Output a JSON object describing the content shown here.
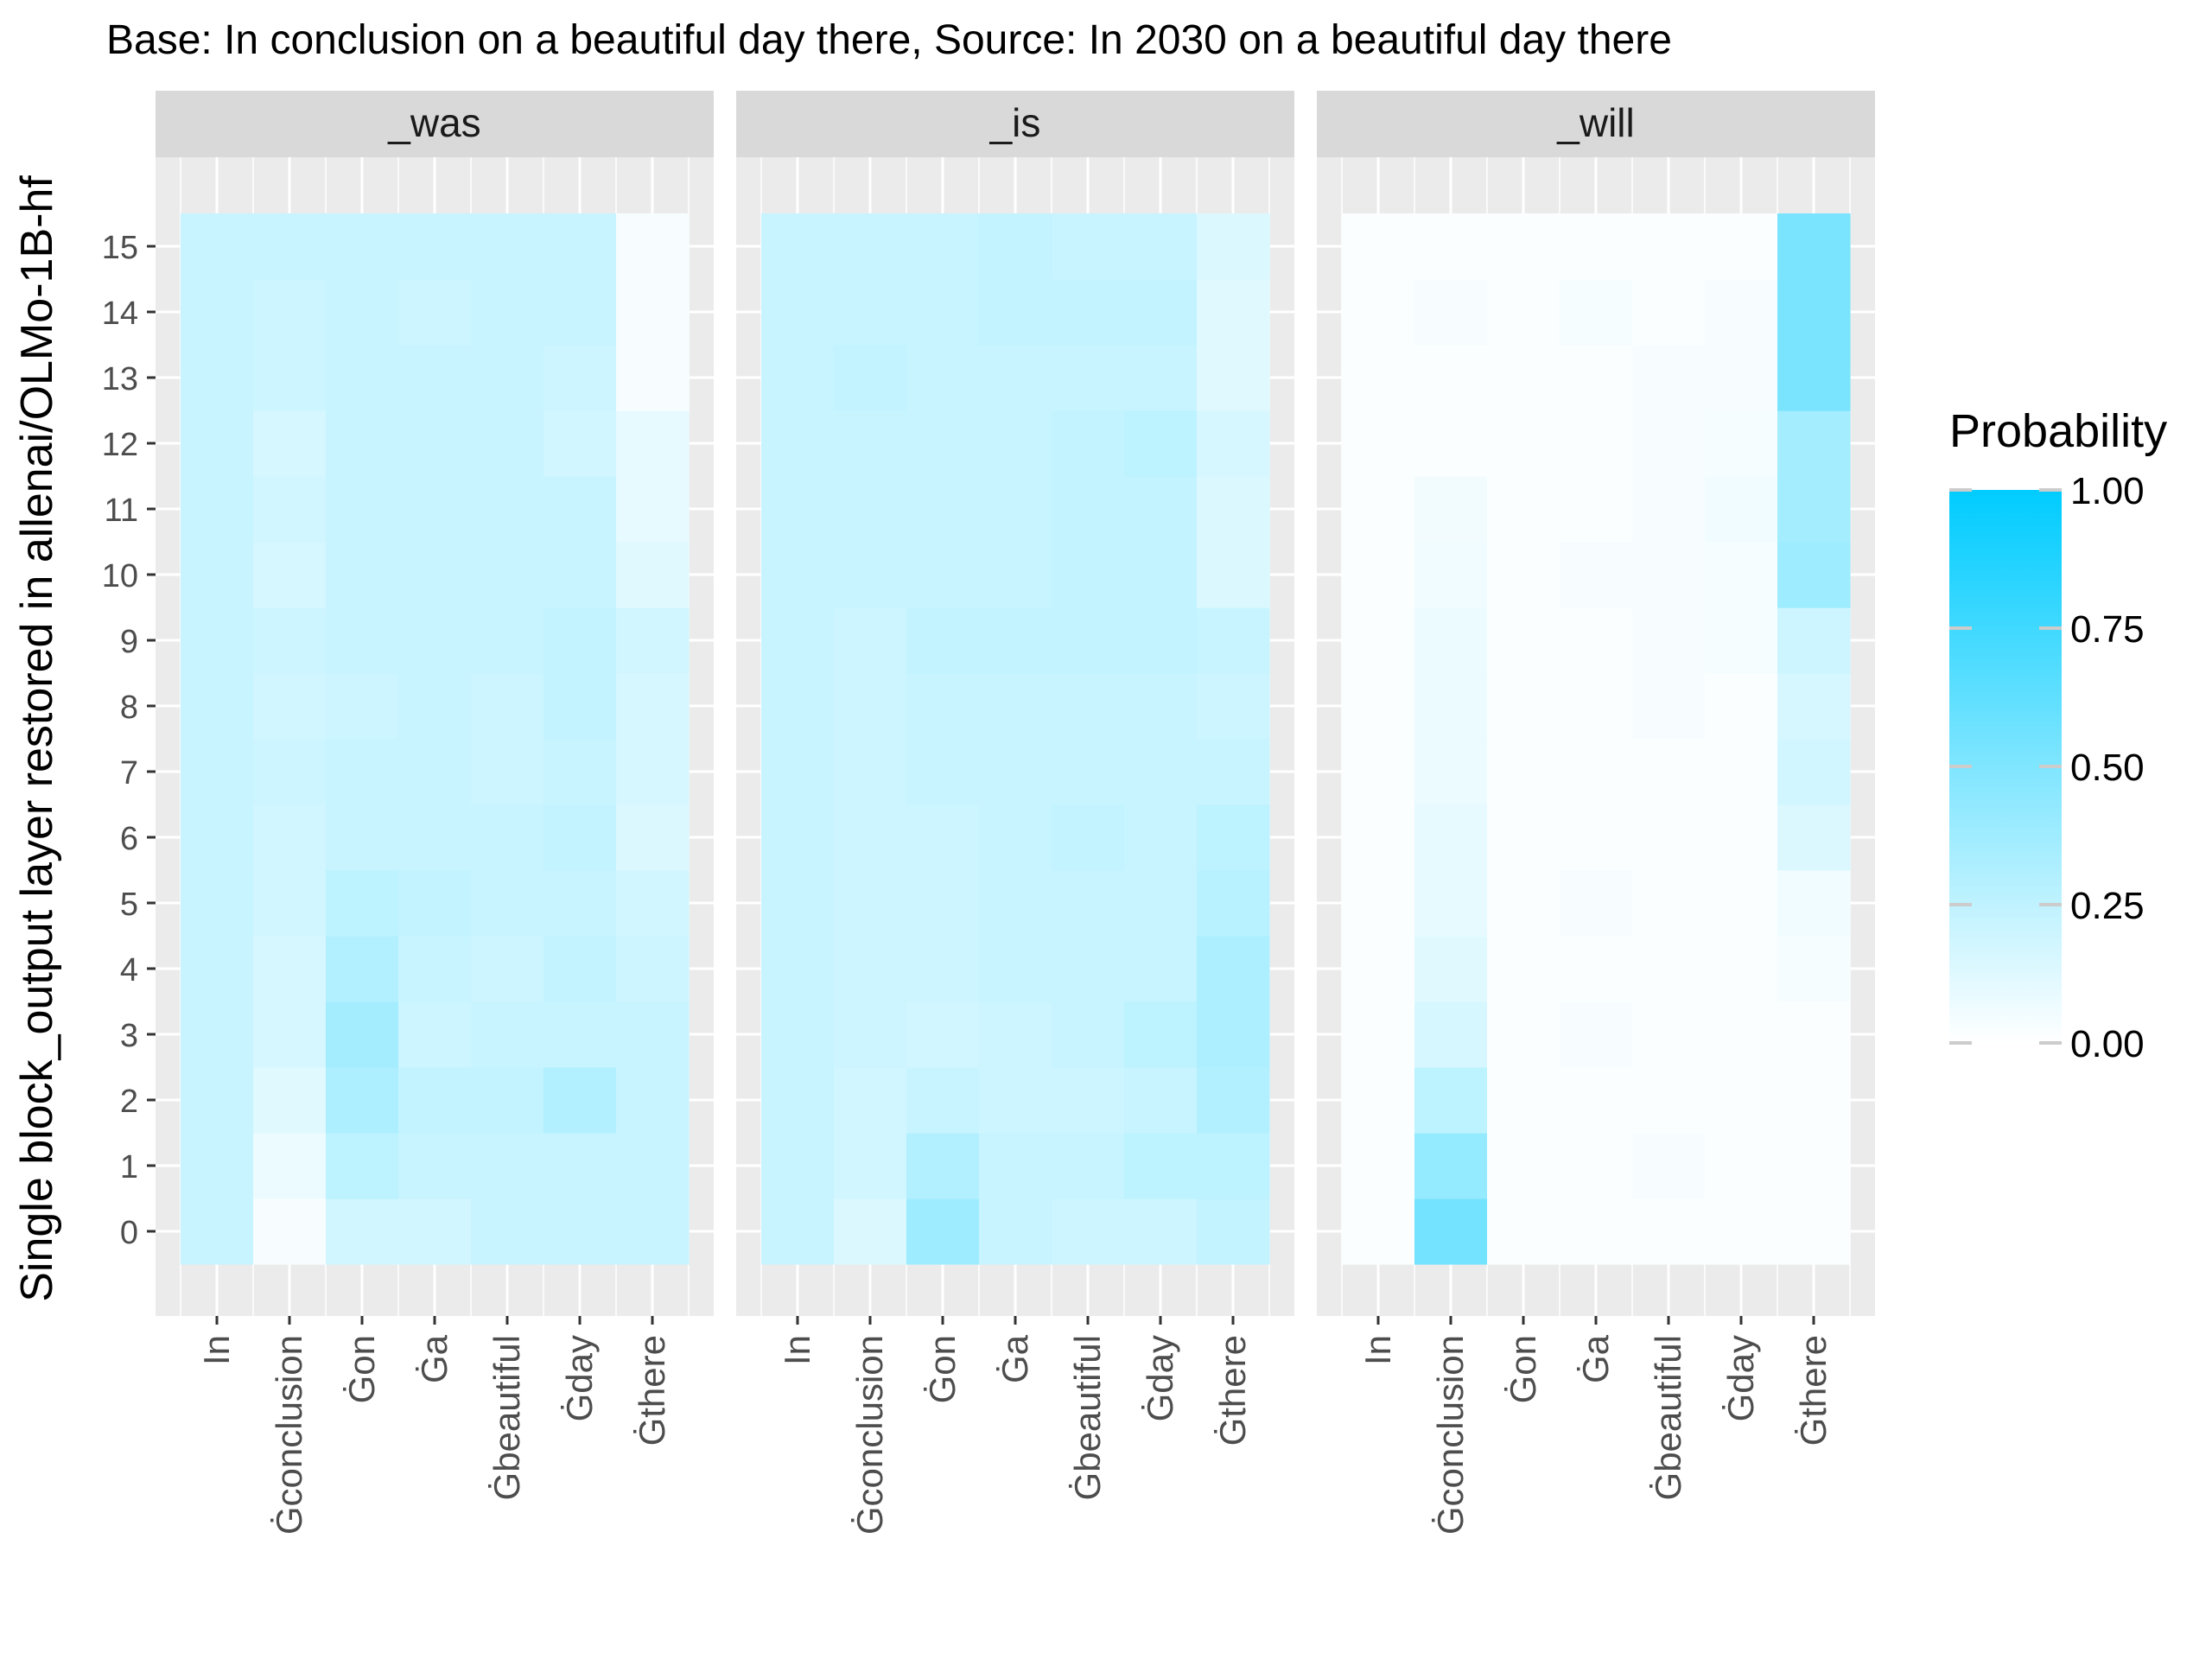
{
  "chart_data": {
    "type": "heatmap",
    "title": "Base: In conclusion on a beautiful day there, Source: In 2030 on a beautiful day there",
    "ylabel": "Single block_output layer restored in allenai/OLMo-1B-hf",
    "xlabel": "",
    "x_categories": [
      "In",
      "Ġconclusion",
      "Ġon",
      "Ġa",
      "Ġbeautiful",
      "Ġday",
      "Ġthere"
    ],
    "y_categories": [
      0,
      1,
      2,
      3,
      4,
      5,
      6,
      7,
      8,
      9,
      10,
      11,
      12,
      13,
      14,
      15
    ],
    "value_range": [
      0,
      1
    ],
    "legend": {
      "title": "Probability",
      "ticks": [
        "1.00",
        "0.75",
        "0.50",
        "0.25",
        "0.00"
      ],
      "tick_values": [
        1.0,
        0.75,
        0.5,
        0.25,
        0.0
      ],
      "placement": "right",
      "low_color": "#ffffff",
      "high_color": "#00ccff"
    },
    "panel_strip_color": "#d9d9d9",
    "panel_background_color": "#ebebeb",
    "grid": true,
    "panels": [
      {
        "name": "_was",
        "values": [
          [
            0.22,
            0.03,
            0.18,
            0.18,
            0.22,
            0.22,
            0.22
          ],
          [
            0.22,
            0.08,
            0.26,
            0.22,
            0.22,
            0.22,
            0.22
          ],
          [
            0.22,
            0.12,
            0.32,
            0.24,
            0.24,
            0.3,
            0.22
          ],
          [
            0.22,
            0.16,
            0.36,
            0.2,
            0.22,
            0.22,
            0.22
          ],
          [
            0.22,
            0.16,
            0.3,
            0.22,
            0.2,
            0.24,
            0.2
          ],
          [
            0.22,
            0.18,
            0.26,
            0.24,
            0.22,
            0.22,
            0.18
          ],
          [
            0.22,
            0.18,
            0.22,
            0.22,
            0.22,
            0.24,
            0.14
          ],
          [
            0.22,
            0.2,
            0.22,
            0.22,
            0.2,
            0.22,
            0.16
          ],
          [
            0.22,
            0.18,
            0.2,
            0.22,
            0.2,
            0.24,
            0.16
          ],
          [
            0.22,
            0.2,
            0.22,
            0.22,
            0.22,
            0.24,
            0.18
          ],
          [
            0.22,
            0.16,
            0.22,
            0.22,
            0.22,
            0.22,
            0.12
          ],
          [
            0.22,
            0.18,
            0.22,
            0.22,
            0.22,
            0.22,
            0.1
          ],
          [
            0.22,
            0.16,
            0.22,
            0.22,
            0.22,
            0.18,
            0.1
          ],
          [
            0.22,
            0.2,
            0.22,
            0.22,
            0.22,
            0.2,
            0.03
          ],
          [
            0.22,
            0.2,
            0.22,
            0.2,
            0.22,
            0.22,
            0.03
          ],
          [
            0.22,
            0.22,
            0.22,
            0.22,
            0.22,
            0.22,
            0.03
          ]
        ]
      },
      {
        "name": "_is",
        "values": [
          [
            0.22,
            0.14,
            0.38,
            0.22,
            0.2,
            0.2,
            0.24
          ],
          [
            0.22,
            0.18,
            0.3,
            0.22,
            0.22,
            0.26,
            0.26
          ],
          [
            0.22,
            0.18,
            0.22,
            0.2,
            0.2,
            0.22,
            0.3
          ],
          [
            0.22,
            0.2,
            0.18,
            0.2,
            0.22,
            0.26,
            0.32
          ],
          [
            0.22,
            0.2,
            0.2,
            0.22,
            0.22,
            0.22,
            0.32
          ],
          [
            0.22,
            0.2,
            0.2,
            0.22,
            0.22,
            0.22,
            0.28
          ],
          [
            0.22,
            0.2,
            0.2,
            0.22,
            0.24,
            0.22,
            0.26
          ],
          [
            0.22,
            0.2,
            0.22,
            0.22,
            0.22,
            0.22,
            0.22
          ],
          [
            0.22,
            0.2,
            0.22,
            0.22,
            0.22,
            0.22,
            0.2
          ],
          [
            0.22,
            0.2,
            0.24,
            0.24,
            0.24,
            0.24,
            0.22
          ],
          [
            0.22,
            0.22,
            0.22,
            0.22,
            0.24,
            0.24,
            0.14
          ],
          [
            0.22,
            0.22,
            0.22,
            0.22,
            0.24,
            0.24,
            0.14
          ],
          [
            0.22,
            0.22,
            0.22,
            0.22,
            0.24,
            0.26,
            0.16
          ],
          [
            0.22,
            0.24,
            0.22,
            0.22,
            0.22,
            0.22,
            0.12
          ],
          [
            0.22,
            0.22,
            0.22,
            0.24,
            0.24,
            0.24,
            0.12
          ],
          [
            0.22,
            0.22,
            0.22,
            0.24,
            0.22,
            0.22,
            0.14
          ]
        ]
      },
      {
        "name": "_will",
        "values": [
          [
            0.02,
            0.55,
            0.02,
            0.02,
            0.02,
            0.02,
            0.02
          ],
          [
            0.02,
            0.42,
            0.02,
            0.02,
            0.03,
            0.02,
            0.02
          ],
          [
            0.02,
            0.26,
            0.02,
            0.02,
            0.02,
            0.02,
            0.02
          ],
          [
            0.02,
            0.16,
            0.02,
            0.03,
            0.02,
            0.02,
            0.02
          ],
          [
            0.02,
            0.12,
            0.02,
            0.02,
            0.02,
            0.02,
            0.04
          ],
          [
            0.02,
            0.1,
            0.02,
            0.03,
            0.02,
            0.02,
            0.06
          ],
          [
            0.02,
            0.1,
            0.02,
            0.02,
            0.02,
            0.02,
            0.14
          ],
          [
            0.02,
            0.08,
            0.02,
            0.02,
            0.02,
            0.02,
            0.18
          ],
          [
            0.02,
            0.08,
            0.02,
            0.02,
            0.03,
            0.02,
            0.16
          ],
          [
            0.02,
            0.08,
            0.02,
            0.02,
            0.03,
            0.04,
            0.2
          ],
          [
            0.02,
            0.06,
            0.02,
            0.03,
            0.03,
            0.04,
            0.38
          ],
          [
            0.02,
            0.05,
            0.02,
            0.02,
            0.03,
            0.06,
            0.36
          ],
          [
            0.02,
            0.02,
            0.02,
            0.02,
            0.03,
            0.04,
            0.36
          ],
          [
            0.02,
            0.02,
            0.02,
            0.02,
            0.03,
            0.03,
            0.52
          ],
          [
            0.02,
            0.03,
            0.02,
            0.04,
            0.02,
            0.03,
            0.52
          ],
          [
            0.02,
            0.02,
            0.02,
            0.02,
            0.02,
            0.02,
            0.52
          ]
        ]
      }
    ]
  }
}
